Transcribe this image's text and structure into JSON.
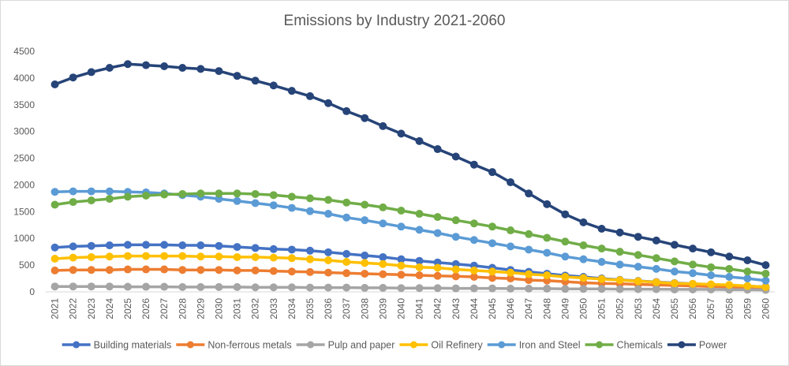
{
  "chart_data": {
    "type": "line",
    "title": "Emissions by Industry 2021-2060",
    "xlabel": "",
    "ylabel": "",
    "ylim": [
      0,
      4500
    ],
    "yticks": [
      0,
      500,
      1000,
      1500,
      2000,
      2500,
      3000,
      3500,
      4000,
      4500
    ],
    "grid": false,
    "legend_position": "bottom",
    "markers": true,
    "x": [
      "2021",
      "2022",
      "2023",
      "2024",
      "2025",
      "2026",
      "2027",
      "2028",
      "2029",
      "2030",
      "2031",
      "2032",
      "2033",
      "2034",
      "2035",
      "2036",
      "2037",
      "2038",
      "2039",
      "2040",
      "2041",
      "2042",
      "2043",
      "2044",
      "2045",
      "2046",
      "2047",
      "2048",
      "2049",
      "2050",
      "2051",
      "2052",
      "2053",
      "2054",
      "2055",
      "2056",
      "2057",
      "2058",
      "2059",
      "2060"
    ],
    "series": [
      {
        "name": "Building materials",
        "color": "#4472C4",
        "values": [
          830,
          850,
          860,
          870,
          880,
          880,
          880,
          870,
          870,
          860,
          840,
          820,
          800,
          790,
          770,
          740,
          710,
          680,
          650,
          610,
          580,
          550,
          520,
          490,
          450,
          410,
          375,
          340,
          305,
          280,
          250,
          225,
          205,
          185,
          165,
          150,
          135,
          120,
          105,
          95
        ]
      },
      {
        "name": "Non-ferrous metals",
        "color": "#ED7D31",
        "values": [
          400,
          410,
          410,
          410,
          420,
          420,
          420,
          410,
          410,
          410,
          400,
          400,
          390,
          380,
          370,
          360,
          350,
          340,
          330,
          320,
          310,
          300,
          290,
          280,
          260,
          250,
          220,
          210,
          190,
          170,
          160,
          150,
          140,
          130,
          120,
          110,
          100,
          90,
          80,
          70
        ]
      },
      {
        "name": "Pulp and paper",
        "color": "#A5A5A5",
        "values": [
          100,
          100,
          100,
          100,
          95,
          95,
          95,
          90,
          90,
          90,
          90,
          85,
          85,
          85,
          80,
          80,
          80,
          75,
          75,
          70,
          70,
          70,
          65,
          65,
          65,
          60,
          60,
          60,
          55,
          55,
          55,
          50,
          50,
          50,
          45,
          45,
          45,
          40,
          40,
          35
        ]
      },
      {
        "name": "Oil Refinery",
        "color": "#FFC000",
        "values": [
          620,
          640,
          650,
          660,
          670,
          670,
          670,
          670,
          660,
          660,
          650,
          650,
          640,
          630,
          610,
          590,
          560,
          540,
          520,
          490,
          460,
          450,
          420,
          400,
          380,
          360,
          330,
          310,
          280,
          260,
          240,
          220,
          200,
          180,
          160,
          150,
          140,
          130,
          110,
          90
        ]
      },
      {
        "name": "Iron and Steel",
        "color": "#5B9BD5",
        "values": [
          1870,
          1880,
          1880,
          1880,
          1870,
          1860,
          1840,
          1810,
          1780,
          1740,
          1700,
          1660,
          1620,
          1570,
          1510,
          1460,
          1390,
          1340,
          1280,
          1220,
          1160,
          1100,
          1030,
          970,
          910,
          850,
          790,
          730,
          660,
          610,
          560,
          510,
          470,
          430,
          380,
          350,
          310,
          280,
          250,
          210
        ]
      },
      {
        "name": "Chemicals",
        "color": "#70AD47",
        "values": [
          1630,
          1680,
          1710,
          1740,
          1780,
          1800,
          1820,
          1830,
          1840,
          1840,
          1840,
          1830,
          1810,
          1780,
          1750,
          1720,
          1670,
          1630,
          1580,
          1520,
          1460,
          1400,
          1340,
          1280,
          1220,
          1150,
          1080,
          1010,
          940,
          870,
          810,
          750,
          690,
          630,
          570,
          510,
          460,
          430,
          380,
          340
        ]
      },
      {
        "name": "Power",
        "color": "#264478",
        "values": [
          3880,
          4010,
          4110,
          4190,
          4260,
          4240,
          4220,
          4190,
          4170,
          4130,
          4040,
          3950,
          3860,
          3760,
          3660,
          3530,
          3380,
          3250,
          3100,
          2960,
          2820,
          2670,
          2530,
          2380,
          2240,
          2050,
          1840,
          1640,
          1450,
          1300,
          1180,
          1110,
          1030,
          960,
          880,
          810,
          740,
          660,
          590,
          500
        ]
      }
    ],
    "axis_color": "#D9D9D9",
    "text_color": "#595959"
  }
}
